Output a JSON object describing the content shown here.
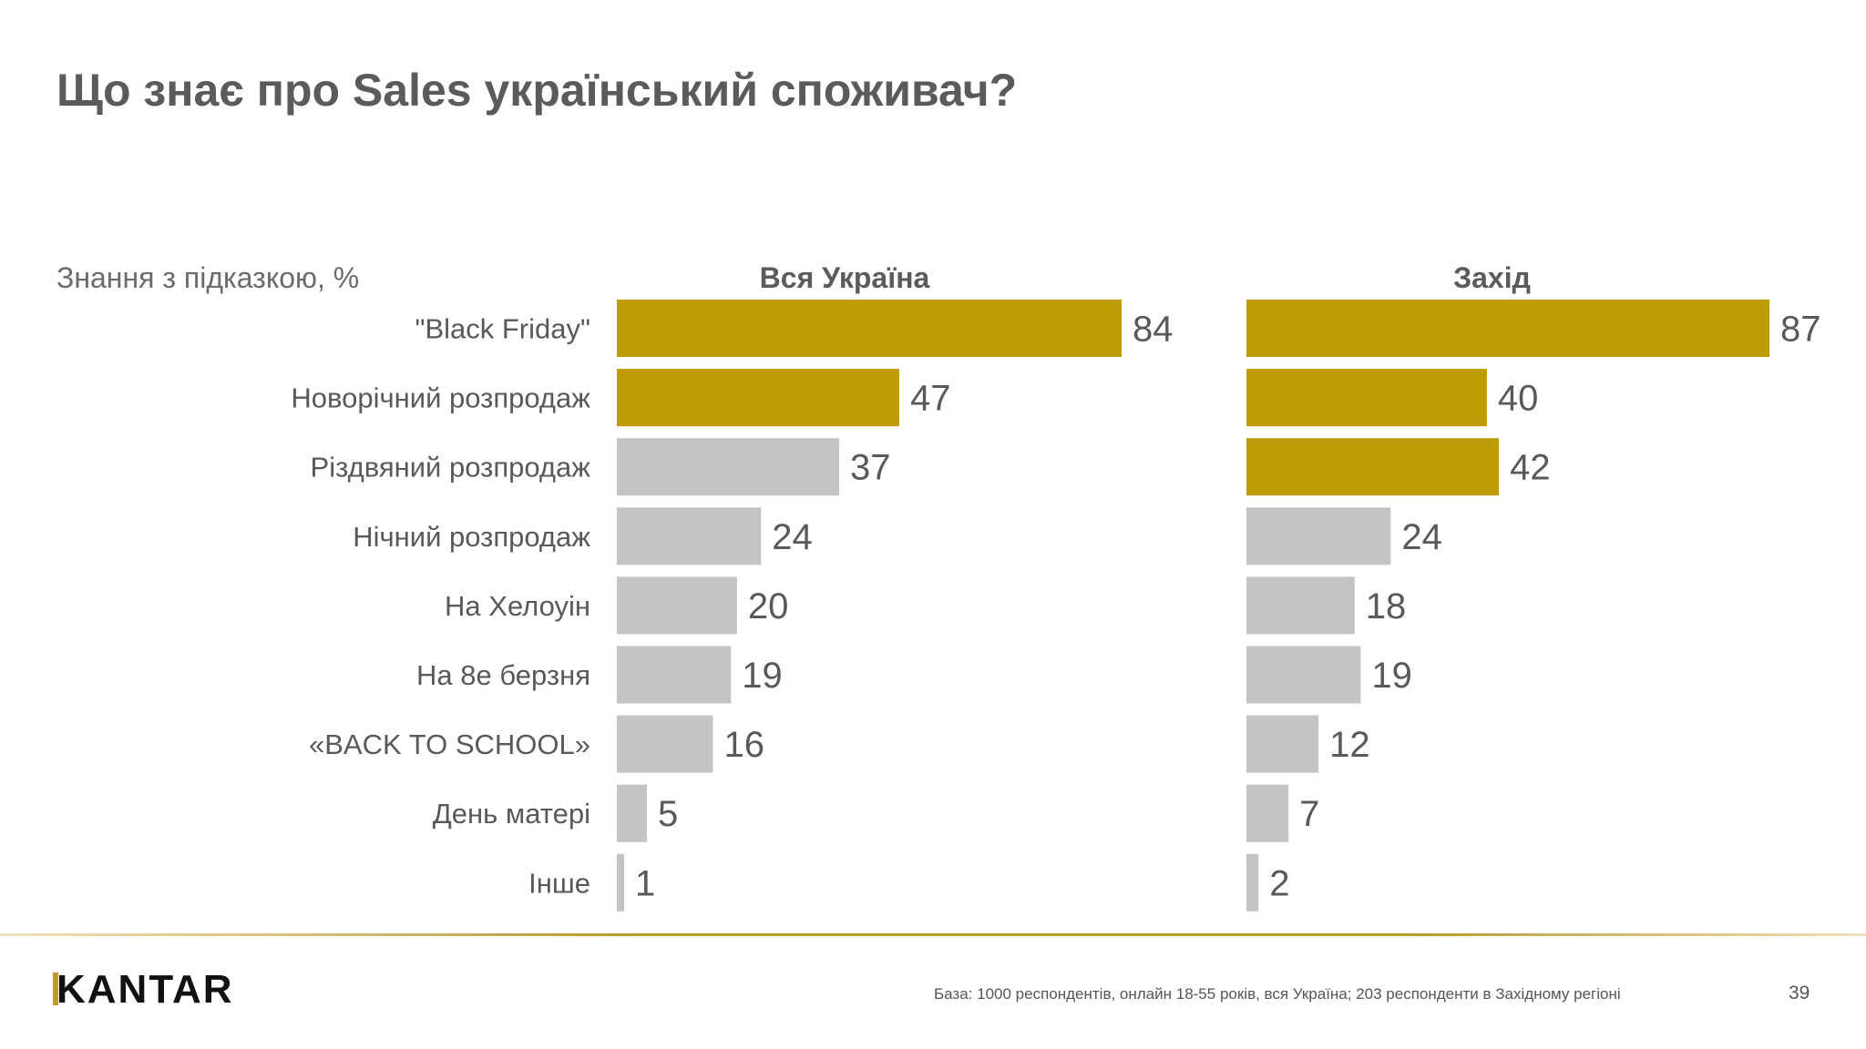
{
  "title": "Що знає про Sales український споживач?",
  "colors": {
    "highlight": "#bf9b05",
    "muted": "#c4c4c4",
    "value_text": "#595959",
    "label_text": "#595959"
  },
  "chart_data": [
    {
      "type": "bar",
      "orientation": "horizontal",
      "title": "Вся Україна",
      "subtitle": "Знання з підказкою, %",
      "categories": [
        "\"Black Friday\"",
        "Новорічний розпродаж",
        "Різдвяний розпродаж",
        "Нічний розпродаж",
        "На Хелоуін",
        "На 8е берзня",
        "«BACK TO SCHOOL»",
        "День матері",
        "Інше"
      ],
      "values": [
        84,
        47,
        37,
        24,
        20,
        19,
        16,
        5,
        1
      ],
      "highlighted": [
        true,
        true,
        false,
        false,
        false,
        false,
        false,
        false,
        false
      ],
      "xlim": [
        0,
        84
      ]
    },
    {
      "type": "bar",
      "orientation": "horizontal",
      "title": "Захід",
      "categories": [
        "\"Black Friday\"",
        "Новорічний розпродаж",
        "Різдвяний розпродаж",
        "Нічний розпродаж",
        "На Хелоуін",
        "На 8е берзня",
        "«BACK TO SCHOOL»",
        "День матері",
        "Інше"
      ],
      "values": [
        87,
        40,
        42,
        24,
        18,
        19,
        12,
        7,
        2
      ],
      "highlighted": [
        true,
        true,
        true,
        false,
        false,
        false,
        false,
        false,
        false
      ],
      "xlim": [
        0,
        87
      ]
    }
  ],
  "footer": {
    "logo": "KANTAR",
    "note": "База: 1000 респондентів, онлайн 18-55 років, вся Україна; 203 респонденти в Західному регіоні",
    "page": "39"
  }
}
